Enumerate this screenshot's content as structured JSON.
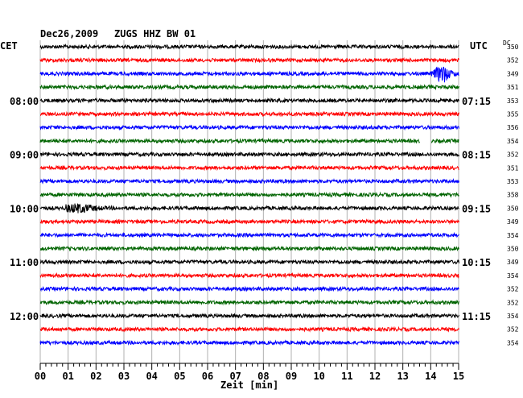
{
  "header": {
    "date": "Dec26,2009",
    "station": "ZUGS HHZ BW 01"
  },
  "labels": {
    "left_zone": "CET",
    "right_zone": "UTC",
    "dc_header": "DC",
    "xaxis_label": "Zeit [min]"
  },
  "chart_data": {
    "type": "line",
    "description_kind": "helicorder seismogram, 15-minute rows",
    "x_ticks": [
      "00",
      "01",
      "02",
      "03",
      "04",
      "05",
      "06",
      "07",
      "08",
      "09",
      "10",
      "11",
      "12",
      "13",
      "14",
      "15"
    ],
    "xlim": [
      0,
      15
    ],
    "row_colors": [
      "#000000",
      "#ff0000",
      "#0000ff",
      "#006400"
    ],
    "left_time_labels": [
      {
        "row": 4,
        "text": "08:00"
      },
      {
        "row": 8,
        "text": "09:00"
      },
      {
        "row": 12,
        "text": "10:00"
      },
      {
        "row": 16,
        "text": "11:00"
      },
      {
        "row": 20,
        "text": "12:00"
      }
    ],
    "right_time_labels": [
      {
        "row": 4,
        "text": "07:15"
      },
      {
        "row": 8,
        "text": "08:15"
      },
      {
        "row": 12,
        "text": "09:15"
      },
      {
        "row": 16,
        "text": "10:15"
      },
      {
        "row": 20,
        "text": "11:15"
      }
    ],
    "dc_values": [
      "350",
      "352",
      "349",
      "351",
      "353",
      "355",
      "356",
      "354",
      "352",
      "351",
      "353",
      "358",
      "350",
      "349",
      "354",
      "350",
      "349",
      "354",
      "352",
      "352",
      "354",
      "352",
      "354"
    ],
    "events": [
      {
        "row": 2,
        "start_min": 14.0,
        "end_min": 15.0,
        "amplitude": "large"
      },
      {
        "row": 12,
        "start_min": 0.9,
        "end_min": 2.6,
        "amplitude": "medium"
      }
    ],
    "gaps": [
      {
        "row": 7,
        "start_min": 13.6,
        "end_min": 14.0
      }
    ]
  }
}
